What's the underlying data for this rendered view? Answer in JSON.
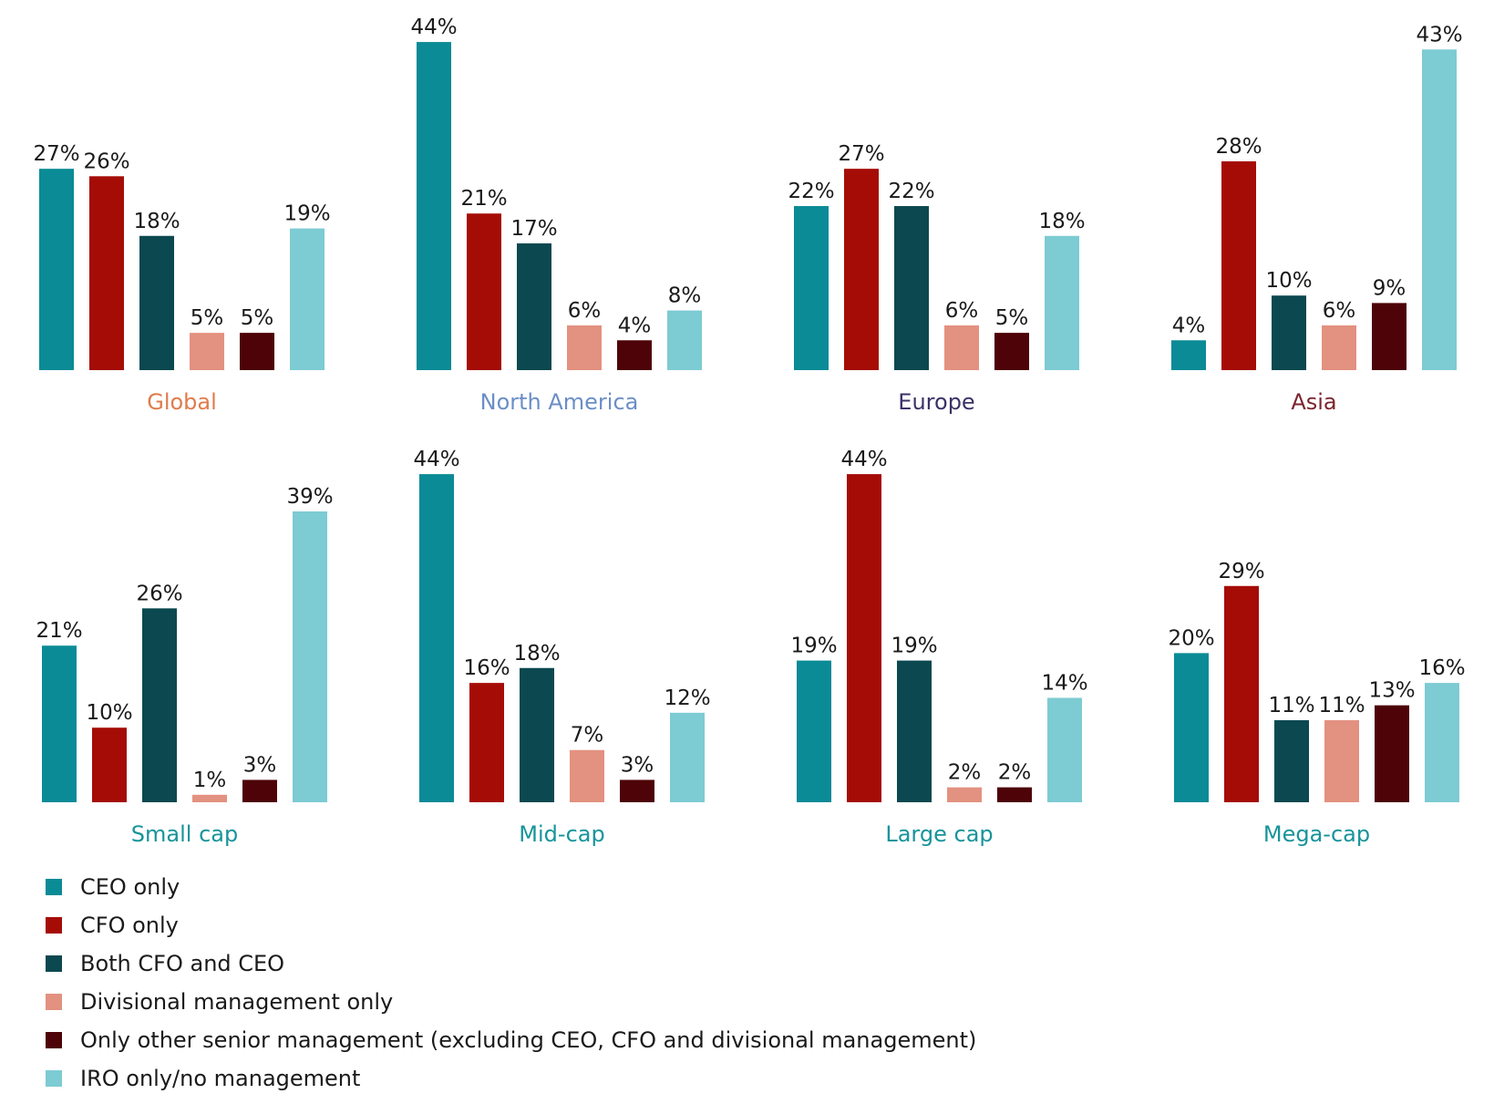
{
  "colors": {
    "series": [
      "#0a8b96",
      "#a50c06",
      "#0b4850",
      "#e39180",
      "#4d0307",
      "#7dcbd3"
    ],
    "category_labels": {
      "Global": "#e07b4c",
      "North America": "#6b8ec7",
      "Europe": "#3b3168",
      "Asia": "#7b2430",
      "Small cap": "#17949a",
      "Mid-cap": "#17949a",
      "Large cap": "#17949a",
      "Mega-cap": "#17949a"
    }
  },
  "legend": {
    "items": [
      "CEO only",
      "CFO only",
      "Both CFO and CEO",
      "Divisional management only",
      "Only other senior management (excluding CEO, CFO and divisional management)",
      "IRO only/no management"
    ]
  },
  "chart_data": {
    "type": "bar",
    "series_names": [
      "CEO only",
      "CFO only",
      "Both CFO and CEO",
      "Divisional management only",
      "Only other senior management (excluding CEO, CFO and divisional management)",
      "IRO only/no management"
    ],
    "groups": [
      {
        "category": "Global",
        "values": [
          27,
          26,
          18,
          5,
          5,
          19
        ]
      },
      {
        "category": "North America",
        "values": [
          44,
          21,
          17,
          6,
          4,
          8
        ]
      },
      {
        "category": "Europe",
        "values": [
          22,
          27,
          22,
          6,
          5,
          18
        ]
      },
      {
        "category": "Asia",
        "values": [
          4,
          28,
          10,
          6,
          9,
          43
        ]
      },
      {
        "category": "Small cap",
        "values": [
          21,
          10,
          26,
          1,
          3,
          39
        ]
      },
      {
        "category": "Mid-cap",
        "values": [
          44,
          16,
          18,
          7,
          3,
          12
        ]
      },
      {
        "category": "Large cap",
        "values": [
          19,
          44,
          19,
          2,
          2,
          14
        ]
      },
      {
        "category": "Mega-cap",
        "values": [
          20,
          29,
          11,
          11,
          13,
          16
        ]
      }
    ],
    "unit": "%",
    "ylim": [
      0,
      44
    ],
    "grid": false,
    "legend_position": "bottom-left"
  }
}
